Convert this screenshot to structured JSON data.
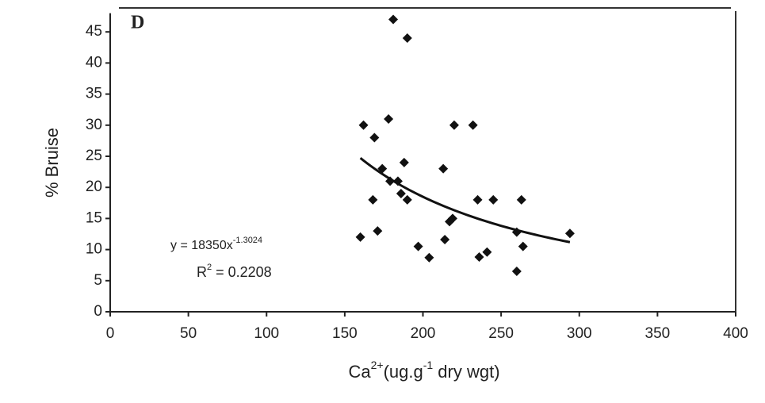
{
  "chart_data": {
    "type": "scatter",
    "panel_label": "D",
    "y_label": "% Bruise",
    "x_label": [
      "Ca",
      "2+",
      "(ug.g",
      "-1",
      " dry wgt)"
    ],
    "x": [
      160,
      162,
      169,
      171,
      168,
      174,
      178,
      181,
      190,
      179,
      184,
      186,
      188,
      190,
      197,
      204,
      213,
      214,
      217,
      219,
      220,
      232,
      235,
      236,
      241,
      245,
      260,
      260,
      263,
      264,
      294
    ],
    "series": [
      {
        "color": "#111111",
        "values": [
          12,
          30,
          28,
          13,
          18,
          23,
          31,
          47,
          44,
          21,
          21,
          19,
          24,
          18,
          10.5,
          8.7,
          23,
          11.6,
          14.5,
          15,
          30,
          30,
          18,
          8.8,
          9.6,
          18,
          6.5,
          12.8,
          18,
          10.5,
          12.6
        ]
      }
    ],
    "trendline": {
      "type": "power",
      "a": 18350,
      "b": -1.3024,
      "color": "#111111"
    },
    "annotations": [
      {
        "text": "y = 18350x",
        "sup": "-1.3024"
      },
      {
        "text": "R",
        "sup": "2",
        "tail": " = 0.2208"
      }
    ],
    "xlim": [
      0,
      400
    ],
    "xticks": [
      0,
      50,
      100,
      150,
      200,
      250,
      300,
      350,
      400
    ],
    "ylim": [
      0,
      48
    ],
    "yticks": [
      0,
      5,
      10,
      15,
      20,
      25,
      30,
      35,
      40,
      45
    ]
  }
}
